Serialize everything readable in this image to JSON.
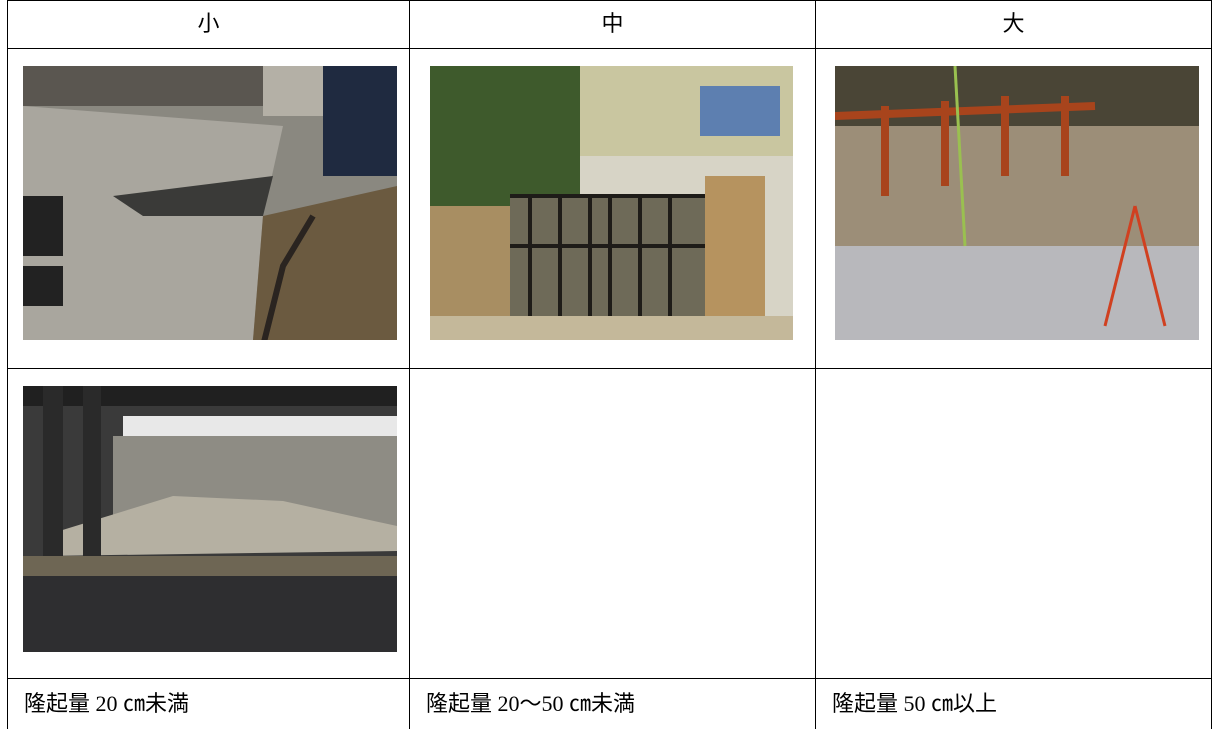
{
  "table": {
    "header": [
      "小",
      "中",
      "大"
    ],
    "footer": [
      "隆起量 20 ㎝未満",
      "隆起量 20～50 ㎝未満",
      "隆起量 50 ㎝以上"
    ]
  }
}
